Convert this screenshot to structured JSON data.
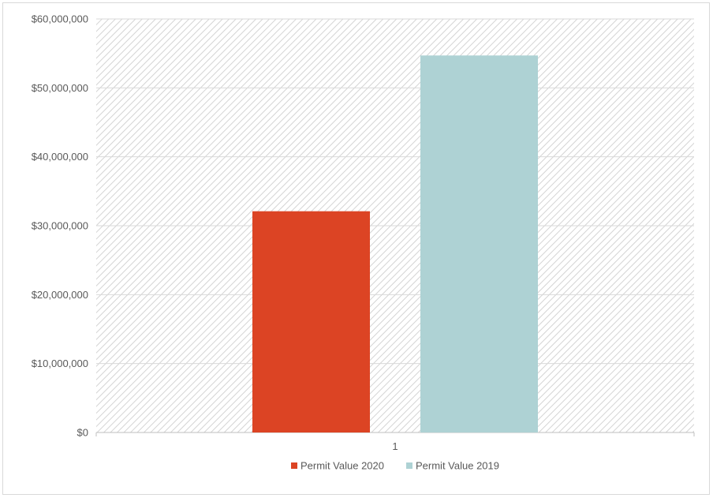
{
  "chart_data": {
    "type": "bar",
    "categories": [
      "1"
    ],
    "series": [
      {
        "name": "Permit Value 2020",
        "values": [
          32100000
        ],
        "color": "#dc4424"
      },
      {
        "name": "Permit Value 2019",
        "values": [
          54700000
        ],
        "color": "#aed2d4"
      }
    ],
    "ylim": [
      0,
      60000000
    ],
    "yticks": [
      0,
      10000000,
      20000000,
      30000000,
      40000000,
      50000000,
      60000000
    ],
    "ytick_labels": [
      "$0",
      "$10,000,000",
      "$20,000,000",
      "$30,000,000",
      "$40,000,000",
      "$50,000,000",
      "$60,000,000"
    ],
    "title": "",
    "xlabel": "",
    "ylabel": "",
    "grid": true,
    "plot_background": "hatched",
    "legend_position": "bottom",
    "legend": [
      "Permit Value 2020",
      "Permit Value 2019"
    ]
  }
}
